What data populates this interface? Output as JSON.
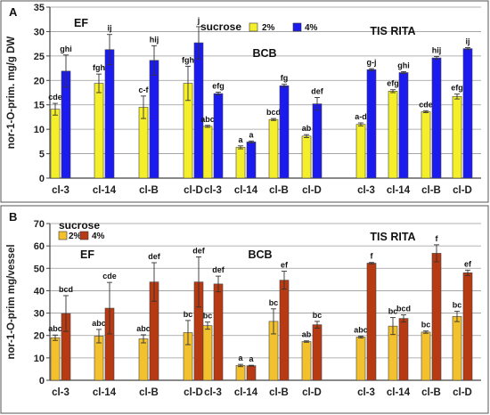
{
  "colors": {
    "panelA_2pct": "#f5ef2b",
    "panelA_4pct": "#1b1bf0",
    "panelB_2pct": "#f3c12e",
    "panelB_4pct": "#b83a12",
    "border": "#555555",
    "grid": "#999999"
  },
  "chart_data": [
    {
      "type": "bar",
      "panel_label": "A",
      "ylabel": "nor-1-O-prim. mg/g DW",
      "ylim": [
        0,
        35
      ],
      "yticks": [
        0,
        5,
        10,
        15,
        20,
        25,
        30,
        35
      ],
      "grid": "horizontal",
      "legend_title": "sucrose",
      "series_names": [
        "2%",
        "4%"
      ],
      "groups": [
        {
          "name": "EF",
          "categories": [
            "cl-3",
            "cl-14",
            "cl-B",
            "cl-D"
          ],
          "series": [
            {
              "name": "2%",
              "values": [
                14.1,
                19.4,
                14.5,
                19.4
              ],
              "errors": [
                1.2,
                1.9,
                2.3,
                3.5
              ],
              "labels": [
                "cde",
                "fgh",
                "c-f",
                "fgh"
              ]
            },
            {
              "name": "4%",
              "values": [
                21.9,
                26.3,
                24.1,
                27.7
              ],
              "errors": [
                3.3,
                3.1,
                3.0,
                3.3
              ],
              "labels": [
                "ghi",
                "ij",
                "hij",
                "j"
              ]
            }
          ]
        },
        {
          "name": "BCB",
          "categories": [
            "cl-3",
            "cl-14",
            "cl-B",
            "cl-D"
          ],
          "series": [
            {
              "name": "2%",
              "values": [
                10.6,
                6.3,
                12.0,
                8.6
              ],
              "errors": [
                0.2,
                0.3,
                0.2,
                0.3
              ],
              "labels": [
                "abc",
                "a",
                "bcd",
                "ab"
              ]
            },
            {
              "name": "4%",
              "values": [
                17.3,
                7.4,
                18.9,
                15.2
              ],
              "errors": [
                0.3,
                0.2,
                0.3,
                1.3
              ],
              "labels": [
                "efg",
                "a",
                "fg",
                "def"
              ]
            }
          ]
        },
        {
          "name": "TIS RITA",
          "categories": [
            "cl-3",
            "cl-14",
            "cl-B",
            "cl-D"
          ],
          "series": [
            {
              "name": "2%",
              "values": [
                11.0,
                17.8,
                13.6,
                16.7
              ],
              "errors": [
                0.3,
                0.3,
                0.2,
                0.5
              ],
              "labels": [
                "a-d",
                "efg",
                "cde",
                "efg"
              ]
            },
            {
              "name": "4%",
              "values": [
                22.2,
                21.6,
                24.6,
                26.5
              ],
              "errors": [
                0.2,
                0.2,
                0.3,
                0.2
              ],
              "labels": [
                "g-j",
                "ghi",
                "hij",
                "ij"
              ]
            }
          ]
        }
      ]
    },
    {
      "type": "bar",
      "panel_label": "B",
      "ylabel": "nor-1-O-prim mg/vessel",
      "ylim": [
        0,
        70
      ],
      "yticks": [
        0,
        10,
        20,
        30,
        40,
        50,
        60,
        70
      ],
      "grid": "horizontal",
      "legend_title": "sucrose",
      "series_names": [
        "2%",
        "4%"
      ],
      "groups": [
        {
          "name": "EF",
          "categories": [
            "cl-3",
            "cl-14",
            "cl-B",
            "cl-D"
          ],
          "series": [
            {
              "name": "2%",
              "values": [
                19.0,
                19.7,
                18.5,
                21.3
              ],
              "errors": [
                1.2,
                3.0,
                1.8,
                5.4
              ],
              "labels": [
                "abc",
                "abc",
                "abc",
                "bc"
              ]
            },
            {
              "name": "4%",
              "values": [
                29.8,
                32.2,
                43.9,
                43.9
              ],
              "errors": [
                8.0,
                11.5,
                8.6,
                11.2
              ],
              "labels": [
                "bcd",
                "cde",
                "def",
                "def"
              ]
            }
          ]
        },
        {
          "name": "BCB",
          "categories": [
            "cl-3",
            "cl-14",
            "cl-B",
            "cl-D"
          ],
          "series": [
            {
              "name": "2%",
              "values": [
                24.4,
                6.6,
                26.3,
                17.3
              ],
              "errors": [
                1.6,
                0.5,
                5.6,
                0.3
              ],
              "labels": [
                "bc",
                "a",
                "bc",
                "ab"
              ]
            },
            {
              "name": "4%",
              "values": [
                43.0,
                6.5,
                44.7,
                24.8
              ],
              "errors": [
                3.5,
                0.2,
                4.0,
                1.5
              ],
              "labels": [
                "def",
                "a",
                "ef",
                "bc"
              ]
            }
          ]
        },
        {
          "name": "TIS RITA",
          "categories": [
            "cl-3",
            "cl-14",
            "cl-B",
            "cl-D"
          ],
          "series": [
            {
              "name": "2%",
              "values": [
                19.3,
                24.2,
                21.5,
                28.5
              ],
              "errors": [
                0.4,
                3.8,
                0.5,
                2.3
              ],
              "labels": [
                "abc",
                "bc",
                "bc",
                "bc"
              ]
            },
            {
              "name": "4%",
              "values": [
                52.3,
                27.6,
                56.7,
                48.0
              ],
              "errors": [
                0.3,
                1.6,
                3.8,
                1.2
              ],
              "labels": [
                "f",
                "bcd",
                "f",
                "ef"
              ]
            }
          ]
        }
      ]
    }
  ]
}
